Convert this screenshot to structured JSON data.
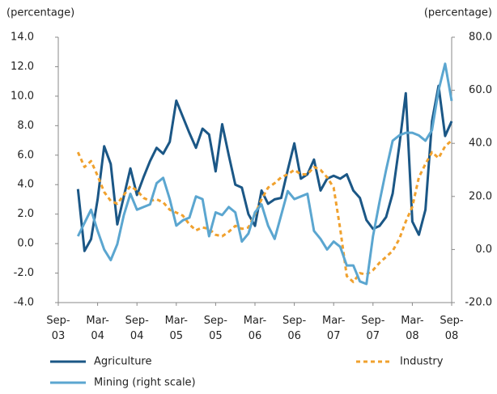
{
  "chart_data": {
    "type": "line",
    "y_label": "(percentage)",
    "y2_label": "(percentage)",
    "categories": [
      "Sep-03",
      null,
      null,
      null,
      null,
      null,
      "Mar-04",
      null,
      null,
      null,
      null,
      null,
      "Sep-04",
      null,
      null,
      null,
      null,
      null,
      "Mar-05",
      null,
      null,
      null,
      null,
      null,
      "Sep-05",
      null,
      null,
      null,
      null,
      null,
      "Mar-06",
      null,
      null,
      null,
      null,
      null,
      "Sep-06",
      null,
      null,
      null,
      null,
      null,
      "Mar-07",
      null,
      null,
      null,
      null,
      null,
      "Sep-07",
      null,
      null,
      null,
      null,
      null,
      "Mar-08",
      null,
      null,
      null,
      null,
      null,
      "Sep-08"
    ],
    "series": [
      {
        "name": "Agriculture",
        "color": "#1b5786",
        "line_style": "solid",
        "values": [
          null,
          null,
          null,
          3.7,
          -0.5,
          0.3,
          3.0,
          6.6,
          5.4,
          1.3,
          3.2,
          5.1,
          3.3,
          4.5,
          5.6,
          6.5,
          6.1,
          6.9,
          9.7,
          8.6,
          7.5,
          6.5,
          7.8,
          7.4,
          4.9,
          8.1,
          6.0,
          4.0,
          3.8,
          2.0,
          1.2,
          3.6,
          2.7,
          3.0,
          3.1,
          5.0,
          6.8,
          4.4,
          4.7,
          5.7,
          3.6,
          4.4,
          4.6,
          4.4,
          4.7,
          3.6,
          3.1,
          1.6,
          1.0,
          1.2,
          1.8,
          3.4,
          6.6,
          10.2,
          1.5,
          0.6,
          2.3,
          8.3,
          10.7,
          7.3,
          8.3
        ]
      },
      {
        "name": "Industry",
        "color": "#f0a12e",
        "line_style": "dashed",
        "values": [
          null,
          null,
          null,
          6.2,
          5.2,
          5.6,
          4.6,
          3.5,
          2.9,
          2.7,
          3.3,
          3.9,
          3.6,
          3.1,
          2.9,
          3.0,
          2.8,
          2.3,
          2.1,
          1.9,
          1.3,
          0.9,
          1.1,
          1.0,
          0.6,
          0.5,
          0.8,
          1.2,
          1.0,
          1.1,
          2.0,
          3.0,
          3.8,
          4.1,
          4.5,
          4.7,
          5.0,
          4.7,
          4.7,
          5.2,
          5.0,
          4.5,
          3.8,
          1.0,
          -2.2,
          -2.6,
          -2.0,
          -2.1,
          -1.8,
          -1.3,
          -0.9,
          -0.5,
          0.3,
          1.5,
          2.5,
          4.5,
          5.4,
          6.2,
          5.8,
          6.6,
          7.0
        ]
      },
      {
        "name": "Mining (right scale)",
        "color": "#5ba6d0",
        "line_style": "solid",
        "axis": "y2",
        "values": [
          null,
          null,
          null,
          5,
          10,
          15,
          7,
          0,
          -4,
          2,
          13,
          21,
          15,
          16,
          17,
          25,
          27,
          19,
          9,
          11,
          12,
          20,
          19,
          5,
          14,
          13,
          16,
          14,
          3,
          6,
          14,
          17,
          9,
          4,
          13,
          22,
          19,
          20,
          21,
          7,
          4,
          0,
          3,
          1,
          -6,
          -6,
          -12,
          -13,
          5,
          18,
          30,
          41,
          43,
          44,
          44,
          43,
          41,
          45,
          60,
          70,
          56
        ]
      }
    ],
    "ylim": [
      -4,
      14
    ],
    "yticks": [
      {
        "value": -4,
        "label": "-4.0"
      },
      {
        "value": -2,
        "label": "-2.0"
      },
      {
        "value": 0,
        "label": "0.0"
      },
      {
        "value": 2,
        "label": "2.0"
      },
      {
        "value": 4,
        "label": "4.0"
      },
      {
        "value": 6,
        "label": "6.0"
      },
      {
        "value": 8,
        "label": "8.0"
      },
      {
        "value": 10,
        "label": "10.0"
      },
      {
        "value": 12,
        "label": "12.0"
      },
      {
        "value": 14,
        "label": "14.0"
      }
    ],
    "y2lim": [
      -20,
      80
    ],
    "y2ticks": [
      {
        "value": -20,
        "label": "-20.0"
      },
      {
        "value": 0,
        "label": "0.0"
      },
      {
        "value": 20,
        "label": "20.0"
      },
      {
        "value": 40,
        "label": "40.0"
      },
      {
        "value": 60,
        "label": "60.0"
      },
      {
        "value": 80,
        "label": "80.0"
      }
    ]
  }
}
